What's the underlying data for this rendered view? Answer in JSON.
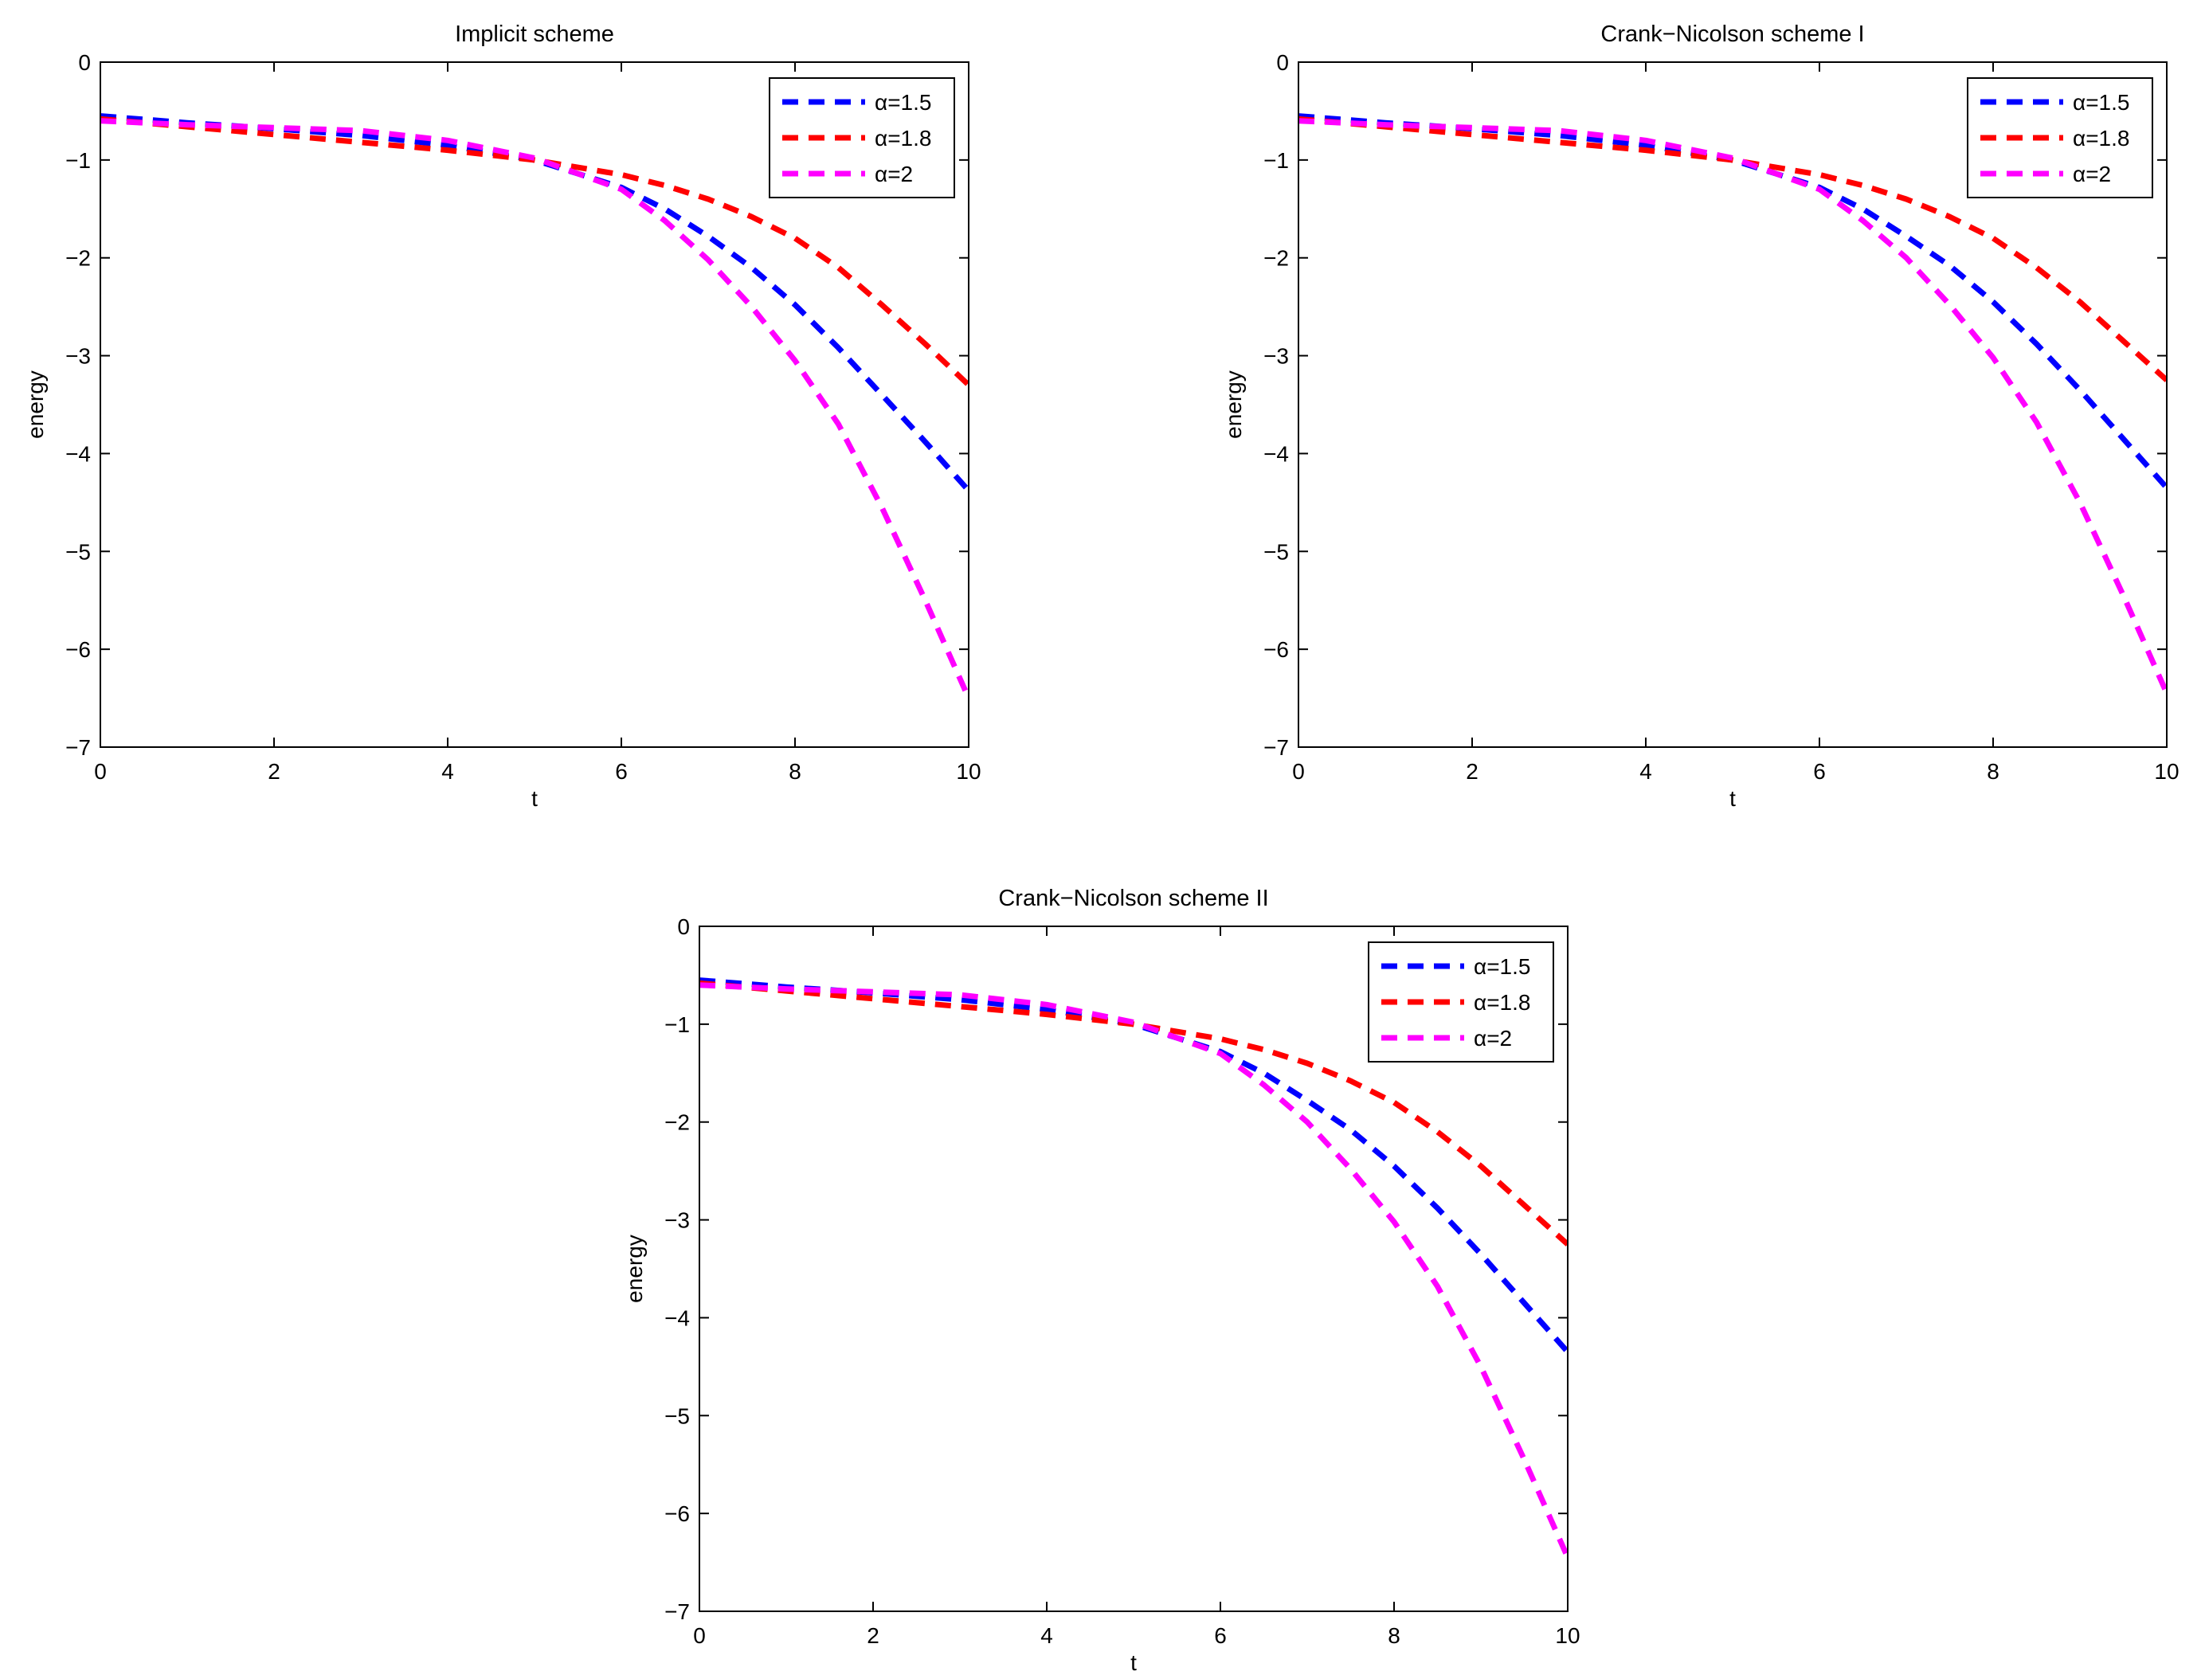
{
  "chart_data": [
    {
      "type": "line",
      "title": "Implicit scheme",
      "xlabel": "t",
      "ylabel": "energy",
      "xlim": [
        0,
        10
      ],
      "ylim": [
        -7,
        0
      ],
      "xticks": [
        "0",
        "2",
        "4",
        "6",
        "8",
        "10"
      ],
      "yticks": [
        "0",
        "−1",
        "−2",
        "−3",
        "−4",
        "−5",
        "−6",
        "−7"
      ],
      "grid": false,
      "legend": "top-right",
      "x": [
        0,
        1,
        2,
        3,
        4,
        5,
        6,
        6.5,
        7,
        7.5,
        8,
        8.5,
        9,
        9.5,
        10
      ],
      "series": [
        {
          "name": "α=1.5",
          "color": "#0000ff",
          "line": "dashed",
          "values": [
            -0.55,
            -0.62,
            -0.68,
            -0.75,
            -0.85,
            -1.0,
            -1.28,
            -1.5,
            -1.78,
            -2.1,
            -2.48,
            -2.92,
            -3.4,
            -3.88,
            -4.38
          ]
        },
        {
          "name": "α=1.8",
          "color": "#ff0000",
          "line": "dashed",
          "values": [
            -0.58,
            -0.66,
            -0.74,
            -0.82,
            -0.9,
            -1.0,
            -1.15,
            -1.26,
            -1.4,
            -1.58,
            -1.8,
            -2.1,
            -2.48,
            -2.88,
            -3.3
          ]
        },
        {
          "name": "α=2",
          "color": "#ff00ff",
          "line": "dashed",
          "values": [
            -0.6,
            -0.64,
            -0.67,
            -0.7,
            -0.8,
            -0.98,
            -1.3,
            -1.62,
            -2.02,
            -2.5,
            -3.05,
            -3.7,
            -4.55,
            -5.5,
            -6.5
          ]
        }
      ]
    },
    {
      "type": "line",
      "title": "Crank−Nicolson scheme I",
      "xlabel": "t",
      "ylabel": "energy",
      "xlim": [
        0,
        10
      ],
      "ylim": [
        -7,
        0
      ],
      "xticks": [
        "0",
        "2",
        "4",
        "6",
        "8",
        "10"
      ],
      "yticks": [
        "0",
        "−1",
        "−2",
        "−3",
        "−4",
        "−5",
        "−6",
        "−7"
      ],
      "grid": false,
      "legend": "top-right",
      "x": [
        0,
        1,
        2,
        3,
        4,
        5,
        6,
        6.5,
        7,
        7.5,
        8,
        8.5,
        9,
        9.5,
        10
      ],
      "series": [
        {
          "name": "α=1.5",
          "color": "#0000ff",
          "line": "dashed",
          "values": [
            -0.55,
            -0.62,
            -0.68,
            -0.75,
            -0.85,
            -1.0,
            -1.28,
            -1.5,
            -1.78,
            -2.08,
            -2.45,
            -2.88,
            -3.35,
            -3.85,
            -4.35
          ]
        },
        {
          "name": "α=1.8",
          "color": "#ff0000",
          "line": "dashed",
          "values": [
            -0.58,
            -0.66,
            -0.74,
            -0.82,
            -0.9,
            -1.0,
            -1.15,
            -1.26,
            -1.4,
            -1.58,
            -1.8,
            -2.1,
            -2.45,
            -2.85,
            -3.25
          ]
        },
        {
          "name": "α=2",
          "color": "#ff00ff",
          "line": "dashed",
          "values": [
            -0.6,
            -0.64,
            -0.67,
            -0.7,
            -0.8,
            -0.98,
            -1.3,
            -1.62,
            -2.0,
            -2.48,
            -3.02,
            -3.68,
            -4.5,
            -5.45,
            -6.45
          ]
        }
      ]
    },
    {
      "type": "line",
      "title": "Crank−Nicolson scheme II",
      "xlabel": "t",
      "ylabel": "energy",
      "xlim": [
        0,
        10
      ],
      "ylim": [
        -7,
        0
      ],
      "xticks": [
        "0",
        "2",
        "4",
        "6",
        "8",
        "10"
      ],
      "yticks": [
        "0",
        "−1",
        "−2",
        "−3",
        "−4",
        "−5",
        "−6",
        "−7"
      ],
      "grid": false,
      "legend": "top-right",
      "x": [
        0,
        1,
        2,
        3,
        4,
        5,
        6,
        6.5,
        7,
        7.5,
        8,
        8.5,
        9,
        9.5,
        10
      ],
      "series": [
        {
          "name": "α=1.5",
          "color": "#0000ff",
          "line": "dashed",
          "values": [
            -0.55,
            -0.62,
            -0.68,
            -0.75,
            -0.85,
            -1.0,
            -1.28,
            -1.5,
            -1.78,
            -2.08,
            -2.45,
            -2.88,
            -3.35,
            -3.85,
            -4.35
          ]
        },
        {
          "name": "α=1.8",
          "color": "#ff0000",
          "line": "dashed",
          "values": [
            -0.58,
            -0.66,
            -0.74,
            -0.82,
            -0.9,
            -1.0,
            -1.15,
            -1.26,
            -1.4,
            -1.58,
            -1.8,
            -2.1,
            -2.45,
            -2.85,
            -3.25
          ]
        },
        {
          "name": "α=2",
          "color": "#ff00ff",
          "line": "dashed",
          "values": [
            -0.6,
            -0.64,
            -0.67,
            -0.7,
            -0.8,
            -0.98,
            -1.3,
            -1.62,
            -2.0,
            -2.48,
            -3.02,
            -3.68,
            -4.5,
            -5.45,
            -6.45
          ]
        }
      ]
    }
  ]
}
